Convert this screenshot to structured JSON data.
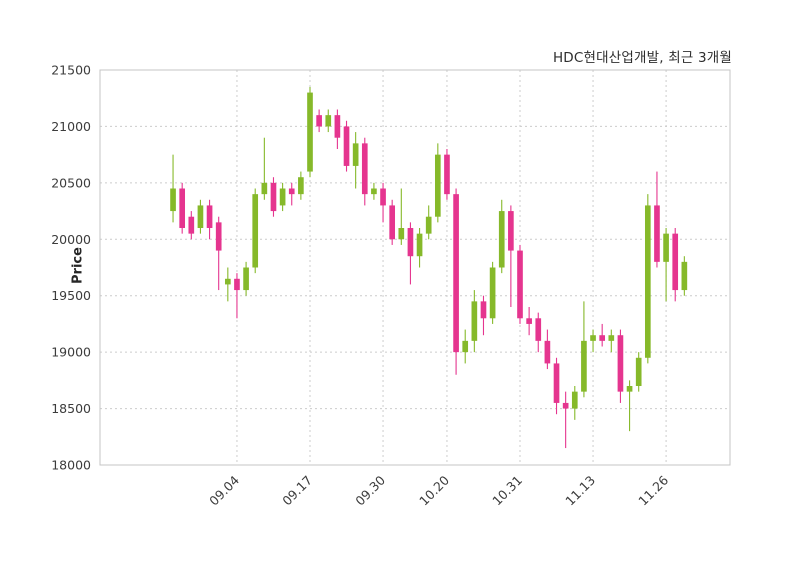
{
  "title": "HDC현대산업개발, 최근 3개월",
  "chart_data": {
    "type": "candlestick",
    "title": "HDC현대산업개발, 최근 3개월",
    "xlabel": "",
    "ylabel": "Price",
    "ylim": [
      18000,
      21500
    ],
    "y_ticks": [
      18000,
      18500,
      19000,
      19500,
      20000,
      20500,
      21000,
      21500
    ],
    "grid": true,
    "legend_position": "none",
    "up_color": "#86b92a",
    "down_color": "#e5358f",
    "grid_color": "#cccccc",
    "border_color": "#c4c4c4",
    "tick_label_color": "#3c3c3c",
    "x_labels": [
      {
        "label": "09.04",
        "index": 7
      },
      {
        "label": "09.17",
        "index": 15
      },
      {
        "label": "09.30",
        "index": 23
      },
      {
        "label": "10.20",
        "index": 30
      },
      {
        "label": "10.31",
        "index": 38
      },
      {
        "label": "11.13",
        "index": 46
      },
      {
        "label": "11.26",
        "index": 54
      }
    ],
    "ohlc_note": "each candle is [open, high, low, close] in KRW",
    "candles": [
      [
        20250,
        20750,
        20150,
        20450
      ],
      [
        20450,
        20500,
        20050,
        20100
      ],
      [
        20200,
        20250,
        20000,
        20050
      ],
      [
        20100,
        20350,
        20050,
        20300
      ],
      [
        20300,
        20350,
        20000,
        20100
      ],
      [
        20150,
        20200,
        19550,
        19900
      ],
      [
        19600,
        19750,
        19450,
        19650
      ],
      [
        19650,
        19700,
        19300,
        19550
      ],
      [
        19550,
        19800,
        19500,
        19750
      ],
      [
        19750,
        20450,
        19700,
        20400
      ],
      [
        20400,
        20900,
        20350,
        20500
      ],
      [
        20500,
        20550,
        20200,
        20250
      ],
      [
        20300,
        20500,
        20250,
        20450
      ],
      [
        20450,
        20500,
        20300,
        20400
      ],
      [
        20400,
        20600,
        20350,
        20550
      ],
      [
        20600,
        21350,
        20550,
        21300
      ],
      [
        21100,
        21150,
        20950,
        21000
      ],
      [
        21000,
        21150,
        20950,
        21100
      ],
      [
        21100,
        21150,
        20800,
        20900
      ],
      [
        21000,
        21050,
        20600,
        20650
      ],
      [
        20650,
        20950,
        20450,
        20850
      ],
      [
        20850,
        20900,
        20300,
        20400
      ],
      [
        20400,
        20500,
        20350,
        20450
      ],
      [
        20450,
        20500,
        20150,
        20300
      ],
      [
        20300,
        20350,
        19950,
        20000
      ],
      [
        20000,
        20450,
        19950,
        20100
      ],
      [
        20100,
        20150,
        19600,
        19850
      ],
      [
        19850,
        20100,
        19750,
        20050
      ],
      [
        20050,
        20300,
        20000,
        20200
      ],
      [
        20200,
        20850,
        20150,
        20750
      ],
      [
        20750,
        20800,
        20350,
        20400
      ],
      [
        20400,
        20450,
        18800,
        19000
      ],
      [
        19000,
        19200,
        18900,
        19100
      ],
      [
        19100,
        19550,
        19000,
        19450
      ],
      [
        19450,
        19500,
        19150,
        19300
      ],
      [
        19300,
        19800,
        19250,
        19750
      ],
      [
        19750,
        20350,
        19700,
        20250
      ],
      [
        20250,
        20300,
        19400,
        19900
      ],
      [
        19900,
        19950,
        19250,
        19300
      ],
      [
        19300,
        19400,
        19150,
        19250
      ],
      [
        19300,
        19350,
        19000,
        19100
      ],
      [
        19100,
        19200,
        18850,
        18900
      ],
      [
        18900,
        18950,
        18450,
        18550
      ],
      [
        18550,
        18650,
        18150,
        18500
      ],
      [
        18500,
        18700,
        18400,
        18650
      ],
      [
        18650,
        19450,
        18600,
        19100
      ],
      [
        19100,
        19200,
        19000,
        19150
      ],
      [
        19150,
        19250,
        19050,
        19100
      ],
      [
        19100,
        19200,
        19000,
        19150
      ],
      [
        19150,
        19200,
        18550,
        18650
      ],
      [
        18650,
        18750,
        18300,
        18700
      ],
      [
        18700,
        19000,
        18650,
        18950
      ],
      [
        18950,
        20400,
        18900,
        20300
      ],
      [
        20300,
        20600,
        19750,
        19800
      ],
      [
        19800,
        20100,
        19450,
        20050
      ],
      [
        20050,
        20100,
        19450,
        19550
      ],
      [
        19550,
        19850,
        19500,
        19800
      ]
    ]
  }
}
